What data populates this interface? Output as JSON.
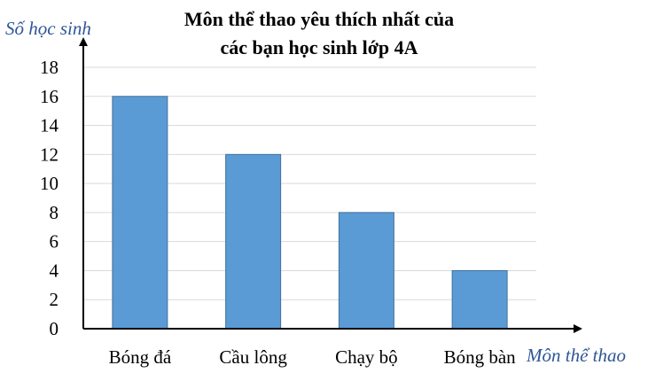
{
  "chart_data": {
    "type": "bar",
    "title_lines": [
      "Môn thể thao yêu thích nhất của",
      "các bạn học sinh lớp 4A"
    ],
    "ylabel": "Số học sinh",
    "xlabel": "Môn thể thao",
    "categories": [
      "Bóng đá",
      "Cầu lông",
      "Chạy bộ",
      "Bóng bàn"
    ],
    "values": [
      16,
      12,
      8,
      4
    ],
    "ylim": [
      0,
      18
    ],
    "yticks": [
      0,
      2,
      4,
      6,
      8,
      10,
      12,
      14,
      16,
      18
    ],
    "grid": true,
    "legend": "none",
    "colors": {
      "bar": "#5b9bd5",
      "bar_edge": "#41719c",
      "grid": "#d9d9d9",
      "axis": "#000000",
      "axis_label": "#2f5597"
    }
  }
}
